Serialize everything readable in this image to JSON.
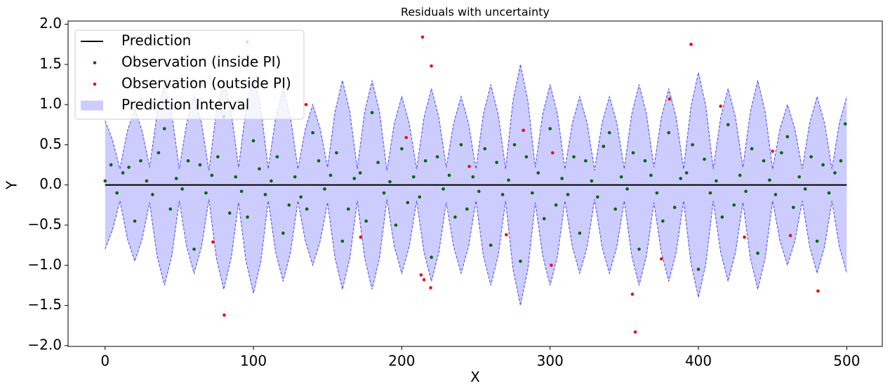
{
  "chart_data": {
    "type": "line",
    "title": "Residuals with uncertainty",
    "xlabel": "X",
    "ylabel": "Y",
    "xlim": [
      -24.95,
      523.95
    ],
    "ylim": [
      -2.01,
      2.04
    ],
    "xticks": [
      0,
      100,
      200,
      300,
      400,
      500
    ],
    "yticks": [
      {
        "value": -2.0,
        "label": "−2.0"
      },
      {
        "value": -1.5,
        "label": "−1.5"
      },
      {
        "value": -1.0,
        "label": "−1.0"
      },
      {
        "value": -0.5,
        "label": "−0.5"
      },
      {
        "value": 0.0,
        "label": "0.0"
      },
      {
        "value": 0.5,
        "label": "0.5"
      },
      {
        "value": 1.0,
        "label": "1.0"
      },
      {
        "value": 1.5,
        "label": "1.5"
      },
      {
        "value": 2.0,
        "label": "2.0"
      }
    ],
    "grid": false,
    "legend": "upper left",
    "series": [
      {
        "name": "Prediction",
        "type": "line",
        "color": "#000000",
        "x": [
          0,
          500
        ],
        "values": [
          0,
          0
        ]
      },
      {
        "name": "Observation (inside PI)",
        "type": "scatter",
        "color": "#006400",
        "x": [
          0,
          4,
          8,
          12,
          16,
          20,
          24,
          28,
          32,
          36,
          40,
          44,
          48,
          52,
          56,
          60,
          64,
          68,
          72,
          76,
          80,
          84,
          88,
          92,
          96,
          100,
          104,
          108,
          112,
          116,
          120,
          124,
          128,
          132,
          136,
          140,
          144,
          148,
          152,
          156,
          160,
          164,
          168,
          172,
          176,
          180,
          184,
          188,
          192,
          196,
          200,
          204,
          208,
          212,
          216,
          220,
          224,
          228,
          232,
          236,
          240,
          244,
          248,
          252,
          256,
          260,
          264,
          268,
          272,
          276,
          280,
          284,
          288,
          292,
          296,
          300,
          304,
          308,
          312,
          316,
          320,
          324,
          328,
          332,
          336,
          340,
          344,
          348,
          352,
          356,
          360,
          364,
          368,
          372,
          376,
          380,
          384,
          388,
          392,
          396,
          400,
          404,
          408,
          412,
          416,
          420,
          424,
          428,
          432,
          436,
          440,
          444,
          448,
          452,
          456,
          460,
          464,
          468,
          472,
          476,
          480,
          484,
          488,
          492,
          496,
          499
        ],
        "values": [
          0.05,
          0.25,
          -0.1,
          0.15,
          0.22,
          -0.45,
          0.3,
          0.05,
          -0.12,
          0.4,
          0.7,
          -0.3,
          0.08,
          -0.05,
          0.3,
          -0.8,
          0.25,
          -0.1,
          0.12,
          0.35,
          0.85,
          -0.35,
          0.1,
          -0.08,
          -0.4,
          0.55,
          0.2,
          -0.12,
          0.05,
          0.35,
          -0.6,
          -0.25,
          0.1,
          -0.15,
          -0.3,
          0.65,
          0.3,
          -0.05,
          0.12,
          0.4,
          -0.7,
          -0.3,
          0.08,
          0.15,
          -0.45,
          0.9,
          0.28,
          -0.1,
          0.04,
          -0.5,
          0.45,
          -0.22,
          0.1,
          -0.15,
          0.3,
          -0.9,
          0.35,
          -0.05,
          0.12,
          -0.4,
          0.5,
          -0.3,
          0.1,
          -0.08,
          0.45,
          -0.75,
          0.28,
          -0.12,
          0.06,
          0.5,
          -0.95,
          0.35,
          -0.1,
          0.15,
          -0.42,
          0.7,
          -0.25,
          0.08,
          -0.12,
          0.35,
          -0.6,
          0.3,
          0.05,
          -0.15,
          0.48,
          0.65,
          -0.3,
          0.1,
          -0.05,
          0.4,
          -0.8,
          0.3,
          0.12,
          -0.1,
          -0.45,
          0.65,
          -0.28,
          0.08,
          0.15,
          0.5,
          -1.05,
          0.32,
          -0.1,
          0.05,
          -0.4,
          0.75,
          -0.25,
          0.12,
          -0.08,
          0.45,
          -0.85,
          0.3,
          0.06,
          -0.12,
          0.4,
          0.6,
          -0.28,
          0.1,
          -0.05,
          0.35,
          -0.7,
          0.25,
          -0.1,
          0.15,
          0.3,
          0.76
        ]
      },
      {
        "name": "Observation (outside PI)",
        "type": "scatter",
        "color": "#e8100c",
        "x": [
          76.5,
          95.8,
          72.7,
          80.3,
          135.5,
          172.3,
          203,
          214,
          220,
          213,
          215,
          219.5,
          245.5,
          270.5,
          282,
          301.7,
          300.8,
          355.5,
          357.4,
          375,
          380.5,
          395,
          415,
          431,
          450,
          462,
          480.6
        ],
        "values": [
          1.49,
          1.78,
          -0.71,
          -1.62,
          1.0,
          -0.65,
          0.59,
          1.84,
          1.48,
          -1.12,
          -1.18,
          -1.28,
          0.23,
          -0.62,
          0.68,
          0.4,
          -1.0,
          -1.36,
          -1.83,
          -0.92,
          1.07,
          1.75,
          0.98,
          -0.65,
          0.42,
          -0.63,
          -1.32
        ]
      },
      {
        "name": "Prediction Interval",
        "type": "band",
        "color": "#0000ff",
        "alpha": 0.2,
        "x": [
          0,
          5,
          10,
          15,
          20,
          25,
          30,
          35,
          40,
          45,
          50,
          55,
          60,
          65,
          70,
          75,
          80,
          85,
          90,
          95,
          100,
          105,
          110,
          115,
          120,
          125,
          130,
          135,
          140,
          145,
          150,
          155,
          160,
          165,
          170,
          175,
          180,
          185,
          190,
          195,
          200,
          205,
          210,
          215,
          220,
          225,
          230,
          235,
          240,
          245,
          250,
          255,
          260,
          265,
          270,
          275,
          280,
          285,
          290,
          295,
          300,
          305,
          310,
          315,
          320,
          325,
          330,
          335,
          340,
          345,
          350,
          355,
          360,
          365,
          370,
          375,
          380,
          385,
          390,
          395,
          400,
          405,
          410,
          415,
          420,
          425,
          430,
          435,
          440,
          445,
          450,
          455,
          460,
          465,
          470,
          475,
          480,
          485,
          490,
          495,
          500
        ],
        "upper": [
          0.8,
          0.56,
          0.2,
          0.67,
          0.95,
          0.67,
          0.22,
          0.88,
          1.25,
          0.88,
          0.2,
          0.77,
          1.1,
          0.77,
          0.18,
          0.91,
          1.3,
          0.91,
          0.22,
          0.95,
          1.35,
          0.95,
          0.2,
          0.84,
          1.2,
          0.84,
          0.2,
          0.7,
          1.0,
          0.7,
          0.22,
          0.91,
          1.3,
          0.91,
          0.2,
          0.91,
          1.3,
          0.91,
          0.18,
          0.77,
          1.1,
          0.77,
          0.2,
          0.84,
          1.2,
          0.84,
          0.22,
          0.77,
          1.1,
          0.77,
          0.2,
          0.88,
          1.25,
          0.88,
          0.2,
          1.05,
          1.5,
          1.05,
          0.22,
          0.88,
          1.25,
          0.88,
          0.2,
          0.77,
          1.1,
          0.77,
          0.18,
          0.77,
          1.1,
          0.77,
          0.2,
          0.88,
          1.25,
          0.88,
          0.22,
          0.84,
          1.2,
          0.84,
          0.2,
          0.98,
          1.4,
          0.98,
          0.2,
          0.84,
          1.2,
          0.84,
          0.22,
          0.91,
          1.3,
          0.91,
          0.2,
          0.7,
          1.0,
          0.7,
          0.2,
          0.77,
          1.1,
          0.77,
          0.2,
          0.77,
          1.1
        ],
        "lower": [
          -0.8,
          -0.56,
          -0.2,
          -0.67,
          -0.95,
          -0.67,
          -0.22,
          -0.88,
          -1.25,
          -0.88,
          -0.2,
          -0.77,
          -1.1,
          -0.77,
          -0.18,
          -0.91,
          -1.3,
          -0.91,
          -0.22,
          -0.95,
          -1.35,
          -0.95,
          -0.2,
          -0.84,
          -1.2,
          -0.84,
          -0.2,
          -0.7,
          -1.0,
          -0.7,
          -0.22,
          -0.91,
          -1.3,
          -0.91,
          -0.2,
          -0.91,
          -1.3,
          -0.91,
          -0.18,
          -0.77,
          -1.1,
          -0.77,
          -0.2,
          -0.84,
          -1.2,
          -0.84,
          -0.22,
          -0.77,
          -1.1,
          -0.77,
          -0.2,
          -0.88,
          -1.25,
          -0.88,
          -0.2,
          -1.05,
          -1.5,
          -1.05,
          -0.22,
          -0.88,
          -1.25,
          -0.88,
          -0.2,
          -0.77,
          -1.1,
          -0.77,
          -0.18,
          -0.77,
          -1.1,
          -0.77,
          -0.2,
          -0.88,
          -1.25,
          -0.88,
          -0.22,
          -0.84,
          -1.2,
          -0.84,
          -0.2,
          -0.98,
          -1.4,
          -0.98,
          -0.2,
          -0.84,
          -1.2,
          -0.84,
          -0.22,
          -0.91,
          -1.3,
          -0.91,
          -0.2,
          -0.7,
          -1.0,
          -0.7,
          -0.2,
          -0.77,
          -1.1,
          -0.77,
          -0.2,
          -0.77,
          -1.1
        ]
      }
    ]
  }
}
